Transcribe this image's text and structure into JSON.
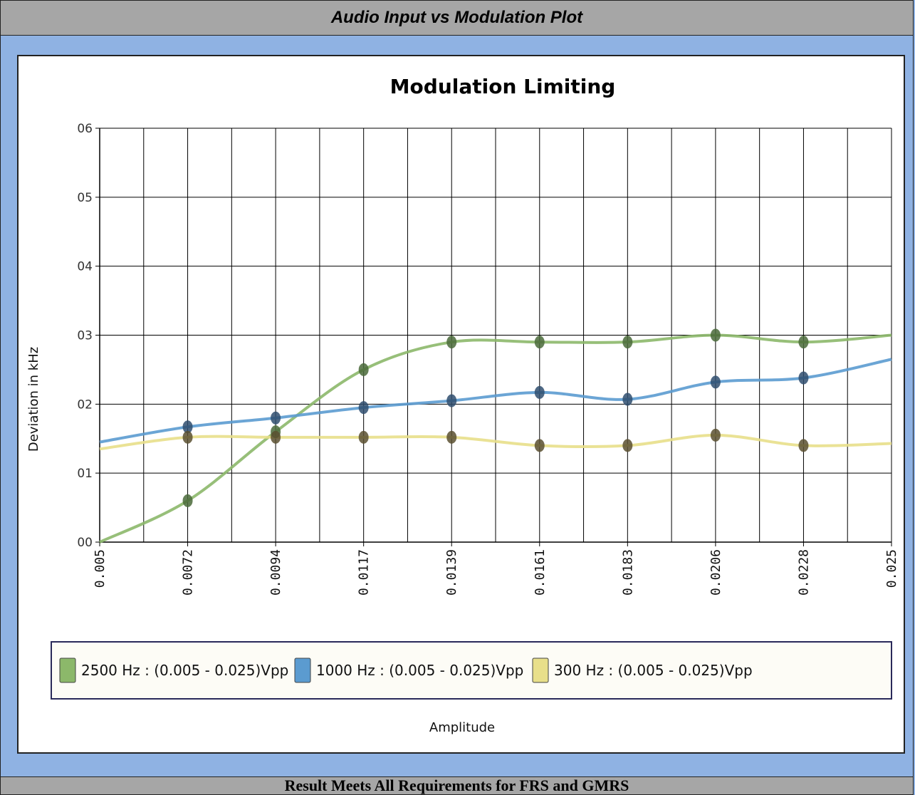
{
  "header": {
    "title": "Audio Input vs Modulation Plot"
  },
  "footer": {
    "result": "Result Meets All Requirements for FRS and GMRS"
  },
  "chart_data": {
    "type": "line",
    "title": "Modulation Limiting",
    "xlabel": "Amplitude",
    "ylabel": "Deviation in kHz",
    "x": [
      0.005,
      0.0072,
      0.0094,
      0.0117,
      0.0139,
      0.0161,
      0.0183,
      0.0206,
      0.0228,
      0.025
    ],
    "x_tick_labels": [
      "0.005",
      "0.0072",
      "0.0094",
      "0.0117",
      "0.0139",
      "0.0161",
      "0.0183",
      "0.0206",
      "0.0228",
      "0.025"
    ],
    "ylim": [
      0,
      0.6
    ],
    "y_ticks": [
      0,
      0.1,
      0.2,
      0.3,
      0.4,
      0.5,
      0.6
    ],
    "y_tick_labels": [
      "00",
      "01",
      "02",
      "03",
      "04",
      "05",
      "06"
    ],
    "grid": true,
    "legend_position": "bottom",
    "series": [
      {
        "name": "2500 Hz : (0.005 - 0.025)Vpp",
        "color": "#8cb86a",
        "marker_color": "#4a6a3a",
        "values": [
          0.0,
          0.06,
          0.16,
          0.25,
          0.29,
          0.29,
          0.29,
          0.3,
          0.29,
          0.3
        ]
      },
      {
        "name": "1000 Hz : (0.005 - 0.025)Vpp",
        "color": "#5b9bd0",
        "marker_color": "#2f4e6e",
        "values": [
          0.145,
          0.167,
          0.18,
          0.195,
          0.205,
          0.217,
          0.207,
          0.232,
          0.238,
          0.265
        ]
      },
      {
        "name": "300 Hz : (0.005 - 0.025)Vpp",
        "color": "#e8df8a",
        "marker_color": "#5a5030",
        "values": [
          0.135,
          0.152,
          0.152,
          0.152,
          0.152,
          0.14,
          0.14,
          0.155,
          0.14,
          0.143
        ]
      }
    ]
  }
}
